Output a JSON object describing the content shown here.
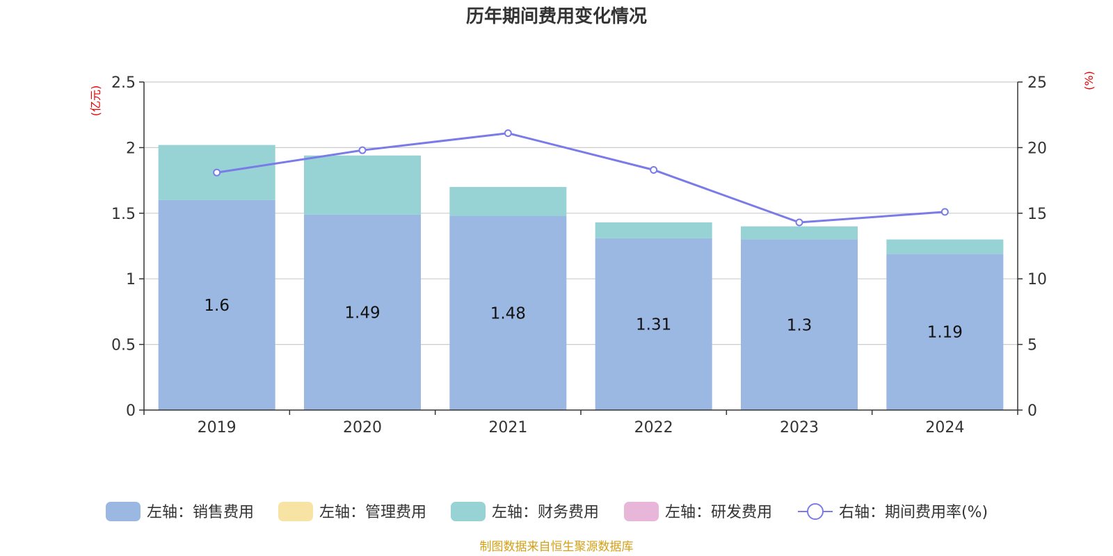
{
  "chart_data": {
    "type": "bar",
    "title": "历年期间费用变化情况",
    "left_axis_unit": "(亿元)",
    "right_axis_unit": "(%)",
    "categories": [
      "2019",
      "2020",
      "2021",
      "2022",
      "2023",
      "2024"
    ],
    "left_axis": {
      "ylim": [
        0,
        2.5
      ],
      "ticks": [
        "0",
        "0.5",
        "1",
        "1.5",
        "2",
        "2.5"
      ]
    },
    "right_axis": {
      "ylim": [
        0,
        25
      ],
      "ticks": [
        "0",
        "5",
        "10",
        "15",
        "20",
        "25"
      ]
    },
    "grid": true,
    "legend_position": "bottom",
    "series": [
      {
        "name": "左轴：销售费用",
        "kind": "bar",
        "axis": "left",
        "color": "#9bb8e2",
        "values": [
          1.6,
          1.49,
          1.48,
          1.31,
          1.3,
          1.19
        ],
        "labels": [
          "1.6",
          "1.49",
          "1.48",
          "1.31",
          "1.3",
          "1.19"
        ]
      },
      {
        "name": "左轴：管理费用",
        "kind": "bar",
        "axis": "left",
        "color": "#f7e4a5",
        "values": [
          0,
          0,
          0,
          0,
          0,
          0
        ]
      },
      {
        "name": "左轴：财务费用",
        "kind": "bar",
        "axis": "left",
        "color": "#97d3d4",
        "values": [
          0.42,
          0.45,
          0.22,
          0.12,
          0.1,
          0.11
        ]
      },
      {
        "name": "左轴：研发费用",
        "kind": "bar",
        "axis": "left",
        "color": "#e8b6d8",
        "values": [
          0,
          0,
          0,
          0,
          0,
          0
        ]
      },
      {
        "name": "右轴：期间费用率(%)",
        "kind": "line",
        "axis": "right",
        "color": "#7b7be8",
        "values": [
          18.1,
          19.8,
          21.1,
          18.3,
          14.3,
          15.1
        ]
      }
    ],
    "source": "制图数据来自恒生聚源数据库"
  }
}
